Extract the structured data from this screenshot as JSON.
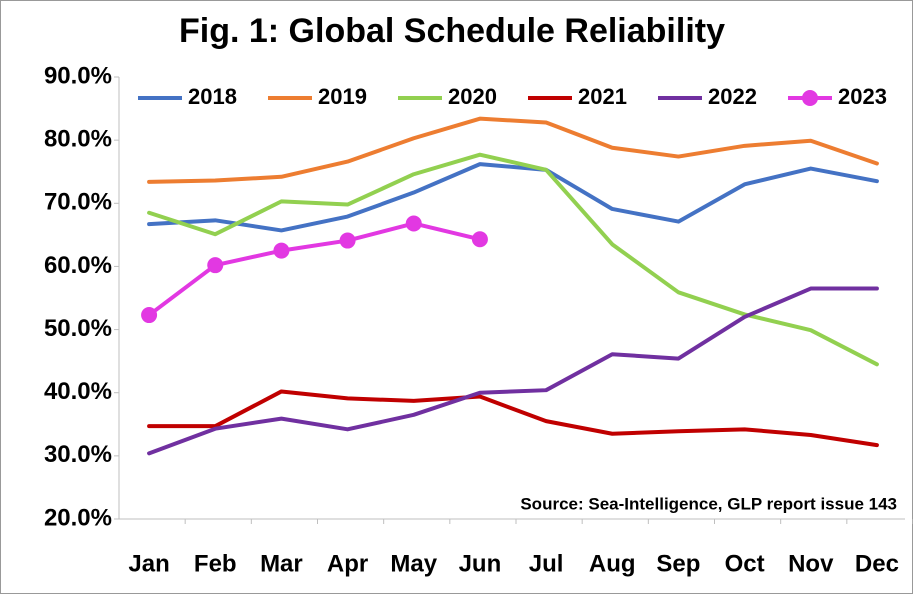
{
  "chart_data": {
    "type": "line",
    "title": "Fig. 1: Global Schedule Reliability",
    "annotation": "Source: Sea-Intelligence, GLP report issue 143",
    "categories": [
      "Jan",
      "Feb",
      "Mar",
      "Apr",
      "May",
      "Jun",
      "Jul",
      "Aug",
      "Sep",
      "Oct",
      "Nov",
      "Dec"
    ],
    "series": [
      {
        "name": "2018",
        "color": "#4472c4",
        "values": [
          66.7,
          67.3,
          65.7,
          67.9,
          71.7,
          76.2,
          75.3,
          69.1,
          67.1,
          73.0,
          75.5,
          73.5
        ]
      },
      {
        "name": "2019",
        "color": "#ed7d31",
        "values": [
          73.4,
          73.6,
          74.2,
          76.6,
          80.3,
          83.4,
          82.8,
          78.8,
          77.4,
          79.1,
          79.9,
          76.3
        ]
      },
      {
        "name": "2020",
        "color": "#92d050",
        "values": [
          68.5,
          65.1,
          70.3,
          69.8,
          74.6,
          77.7,
          75.3,
          63.5,
          55.9,
          52.4,
          49.9,
          44.5
        ]
      },
      {
        "name": "2021",
        "color": "#c00000",
        "values": [
          34.7,
          34.7,
          40.2,
          39.1,
          38.7,
          39.4,
          35.5,
          33.5,
          33.9,
          34.2,
          33.3,
          31.7
        ]
      },
      {
        "name": "2022",
        "color": "#7030a0",
        "values": [
          30.4,
          34.3,
          35.9,
          34.2,
          36.5,
          40.0,
          40.4,
          46.1,
          45.4,
          52.0,
          56.5,
          56.5
        ]
      },
      {
        "name": "2023",
        "color": "#e238e2",
        "marker": true,
        "values": [
          52.3,
          60.2,
          62.5,
          64.1,
          66.8,
          64.3,
          null,
          null,
          null,
          null,
          null,
          null
        ]
      }
    ],
    "ylim": [
      20,
      90
    ],
    "yticks": [
      {
        "value": 20,
        "label": "20.0%"
      },
      {
        "value": 30,
        "label": "30.0%"
      },
      {
        "value": 40,
        "label": "40.0%"
      },
      {
        "value": 50,
        "label": "50.0%"
      },
      {
        "value": 60,
        "label": "60.0%"
      },
      {
        "value": 70,
        "label": "70.0%"
      },
      {
        "value": 80,
        "label": "80.0%"
      },
      {
        "value": 90,
        "label": "90.0%"
      }
    ],
    "grid": false,
    "legend": "top"
  }
}
